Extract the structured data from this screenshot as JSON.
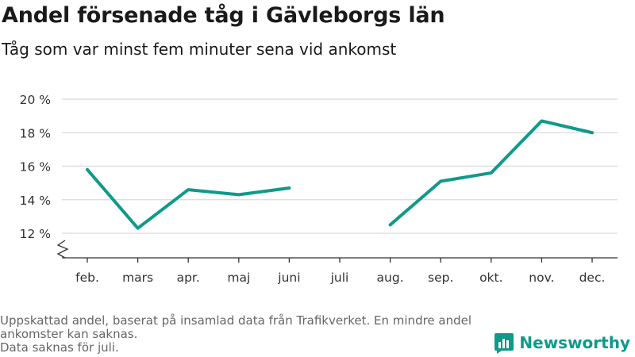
{
  "title": "Andel försenade tåg i Gävleborgs län",
  "subtitle": "Tåg som var minst fem minuter sena vid ankomst",
  "footnote": {
    "line1": "Uppskattad andel, baserat på insamlad data från Trafikverket. En mindre andel ankomster kan saknas.",
    "line2": "Data saknas för juli."
  },
  "brand": {
    "name": "Newsworthy",
    "color": "#0f9a89"
  },
  "colors": {
    "line": "#0f9a89",
    "grid": "#d9d9d9",
    "axis": "#333333"
  },
  "chart_data": {
    "type": "line",
    "title": "Andel försenade tåg i Gävleborgs län",
    "subtitle": "Tåg som var minst fem minuter sena vid ankomst",
    "categories": [
      "feb.",
      "mars",
      "apr.",
      "maj",
      "juni",
      "juli",
      "aug.",
      "sep.",
      "okt.",
      "nov.",
      "dec."
    ],
    "series": [
      {
        "values": [
          15.8,
          12.3,
          14.6,
          14.3,
          14.7,
          null,
          12.5,
          15.1,
          15.6,
          18.7,
          18.0
        ]
      }
    ],
    "yticks": [
      12,
      14,
      16,
      18,
      20
    ],
    "ytick_labels": [
      "12 %",
      "14 %",
      "16 %",
      "18 %",
      "20 %"
    ],
    "ylim": [
      11,
      20
    ],
    "y_axis_break": true,
    "grid": "horizontal",
    "xlabel": "",
    "ylabel": ""
  }
}
